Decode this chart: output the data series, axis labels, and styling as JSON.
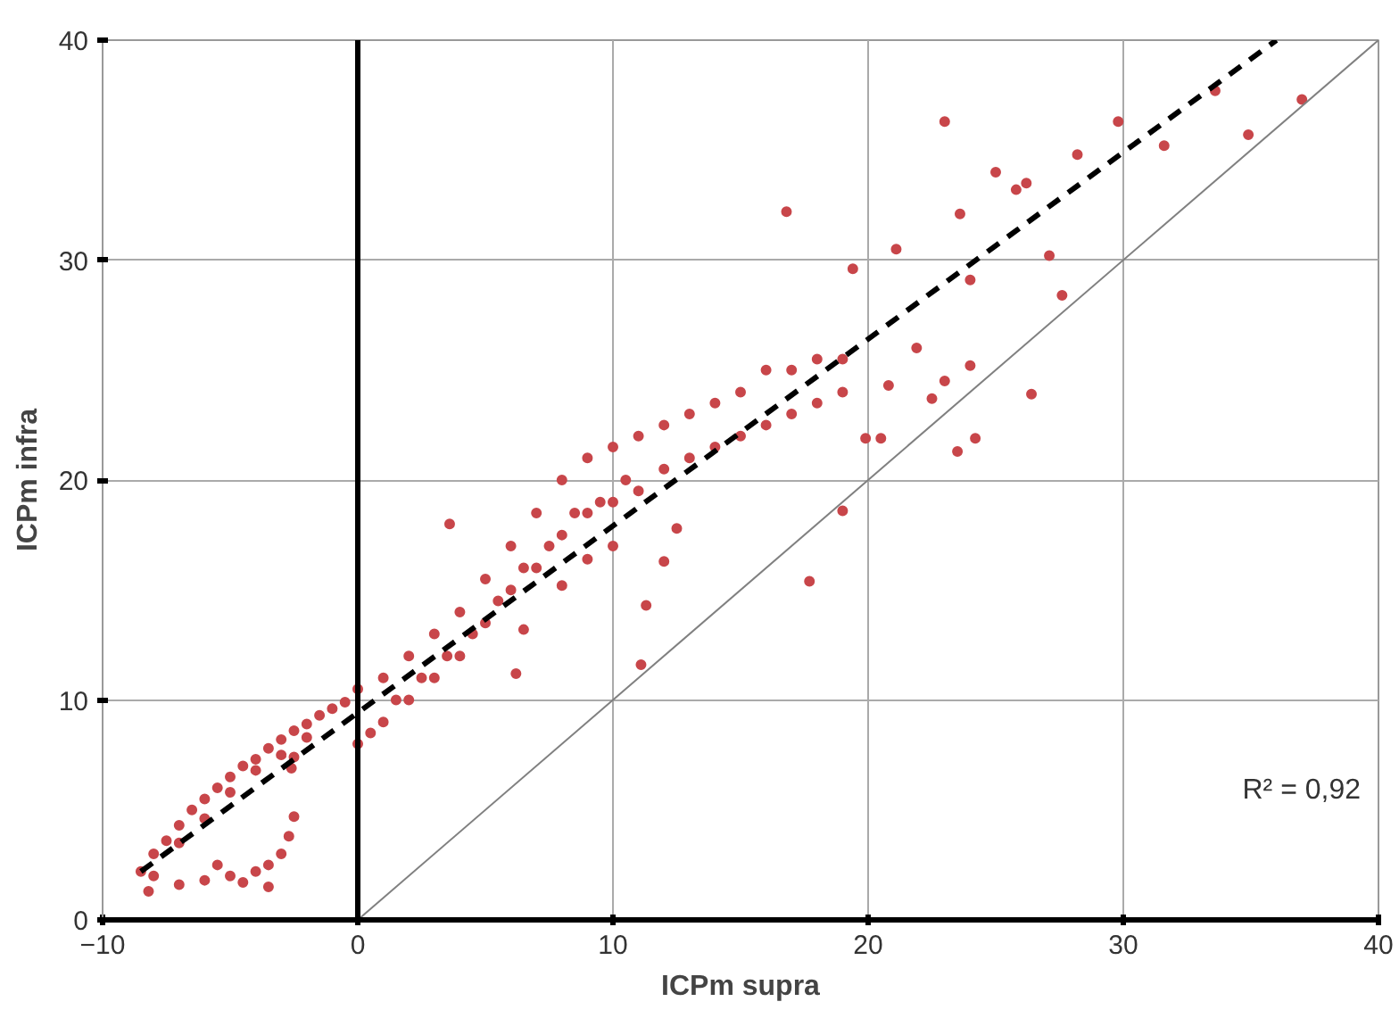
{
  "chart_data": {
    "type": "scatter",
    "xlabel": "ICPm supra",
    "ylabel": "ICPm infra",
    "xlim": [
      -10,
      40
    ],
    "ylim": [
      0,
      40
    ],
    "xticks": [
      -10,
      0,
      10,
      20,
      30,
      40
    ],
    "yticks": [
      0,
      10,
      20,
      30,
      40
    ],
    "grid": true,
    "marker": "circle",
    "annotations": [
      "R² = 0,92"
    ],
    "ref_lines": [
      {
        "axis": "x",
        "value": 0,
        "color": "#000000"
      }
    ],
    "series": [
      {
        "color": "#c8464a",
        "x": [
          -8.5,
          -8,
          -7.5,
          -7,
          -6.5,
          -6,
          -5.5,
          -5,
          -4.5,
          -4,
          -3.5,
          -3,
          -2.5,
          -2,
          -1.5,
          -1,
          -0.5,
          -8,
          -7,
          -6,
          -5,
          -4,
          -3,
          -2,
          -8.2,
          -7,
          -6,
          -5.5,
          -5,
          -4.5,
          -4,
          -3.5,
          -3,
          -2.7,
          -2.5,
          -3.5,
          -2.5,
          -2.6,
          0,
          0.5,
          0,
          1,
          1,
          1.5,
          2,
          2,
          2.5,
          3,
          3,
          3.5,
          4,
          4,
          4.5,
          5,
          5,
          5.5,
          6,
          6,
          6.5,
          7,
          7,
          7.5,
          8,
          8,
          8.5,
          9,
          9,
          9.5,
          10,
          10,
          10.5,
          11,
          11,
          12,
          12,
          13,
          13,
          14,
          14,
          15,
          15,
          16,
          16,
          17,
          17,
          18,
          18,
          19,
          19,
          6.5,
          8,
          9,
          10,
          12,
          12.5,
          3.6,
          16.8,
          17.7,
          11.1,
          11.3,
          6.2,
          23.0,
          29.8,
          28.2,
          25.0,
          25.8,
          26.2,
          23.6,
          21.1,
          19.4,
          27.1,
          27.6,
          24,
          33.6,
          37.0,
          34.9,
          31.6,
          26.4,
          24.2,
          23.5,
          23.0,
          21.9,
          22.5,
          20.5,
          19.9,
          19.0,
          24,
          20.8
        ],
        "values": [
          2.2,
          3,
          3.6,
          4.3,
          5,
          5.5,
          6,
          6.5,
          7,
          7.3,
          7.8,
          8.2,
          8.6,
          8.9,
          9.3,
          9.6,
          9.9,
          2,
          3.5,
          4.6,
          5.8,
          6.8,
          7.5,
          8.3,
          1.3,
          1.6,
          1.8,
          2.5,
          2.0,
          1.7,
          2.2,
          2.5,
          3,
          3.8,
          4.7,
          1.5,
          7.4,
          6.9,
          8,
          8.5,
          10.5,
          9,
          11,
          10,
          10,
          12,
          11,
          11,
          13,
          12,
          12,
          14,
          13,
          13.5,
          15.5,
          14.5,
          15,
          17,
          16,
          16,
          18.5,
          17,
          17.5,
          20,
          18.5,
          18.5,
          21,
          19,
          19,
          21.5,
          20,
          19.5,
          22,
          20.5,
          22.5,
          21,
          23,
          21.5,
          23.5,
          22,
          24,
          22.5,
          25,
          23,
          25,
          23.5,
          25.5,
          24,
          25.5,
          13.2,
          15.2,
          16.4,
          17,
          16.3,
          17.8,
          18,
          32.2,
          15.4,
          11.6,
          14.3,
          11.2,
          36.3,
          36.3,
          34.8,
          34,
          33.2,
          33.5,
          32.1,
          30.5,
          29.6,
          30.2,
          28.4,
          29.1,
          37.7,
          37.3,
          35.7,
          35.2,
          23.9,
          21.9,
          21.3,
          24.5,
          26,
          23.7,
          21.9,
          21.9,
          18.6,
          25.2,
          24.3
        ]
      },
      {
        "type": "line",
        "color": "#000000",
        "line_style": "dashed",
        "marker": "none",
        "x": [
          -8.5,
          36
        ],
        "values": [
          2.2,
          40
        ]
      },
      {
        "type": "line",
        "color": "#808080",
        "line_style": "solid",
        "marker": "none",
        "x": [
          0,
          40
        ],
        "values": [
          0,
          40
        ]
      }
    ]
  }
}
